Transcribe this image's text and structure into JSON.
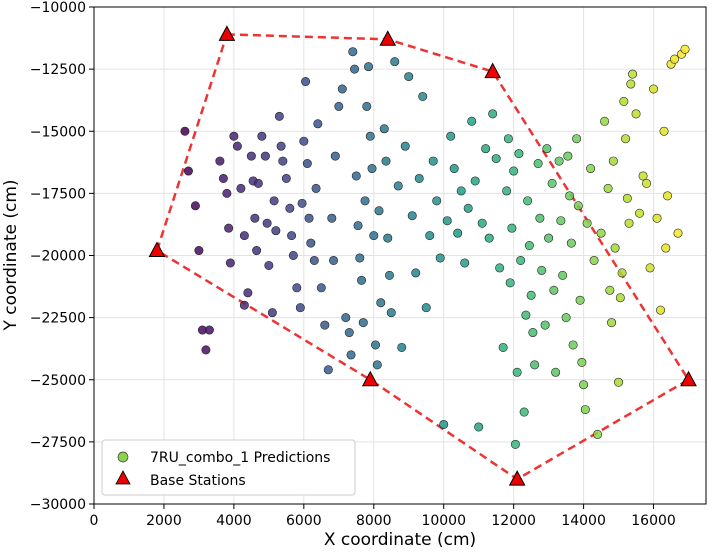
{
  "chart_data": {
    "type": "scatter",
    "title": "",
    "xlabel": "X coordinate (cm)",
    "ylabel": "Y coordinate (cm)",
    "xlim": [
      0,
      17500
    ],
    "ylim": [
      -30000,
      -10000
    ],
    "xticks": [
      0,
      2000,
      4000,
      6000,
      8000,
      10000,
      12000,
      14000,
      16000
    ],
    "xtick_labels": [
      "0",
      "2000",
      "4000",
      "6000",
      "8000",
      "10000",
      "12000",
      "14000",
      "16000"
    ],
    "yticks": [
      -30000,
      -27500,
      -25000,
      -22500,
      -20000,
      -17500,
      -15000,
      -12500,
      -10000
    ],
    "ytick_labels": [
      "−30000",
      "−27500",
      "−25000",
      "−22500",
      "−20000",
      "−17500",
      "−15000",
      "−12500",
      "−10000"
    ],
    "grid": true,
    "legend_position": "bottom-left",
    "colormap": "viridis",
    "color_by": "x",
    "series": [
      {
        "name": "7RU_combo_1 Predictions",
        "marker": "circle",
        "points": [
          [
            2600,
            -15000
          ],
          [
            2700,
            -16600
          ],
          [
            2900,
            -18000
          ],
          [
            3000,
            -19800
          ],
          [
            3100,
            -23000
          ],
          [
            3200,
            -23800
          ],
          [
            3300,
            -23000
          ],
          [
            3600,
            -16200
          ],
          [
            3700,
            -16900
          ],
          [
            3800,
            -17500
          ],
          [
            3850,
            -18900
          ],
          [
            3900,
            -20300
          ],
          [
            4000,
            -15200
          ],
          [
            4100,
            -15600
          ],
          [
            4200,
            -17300
          ],
          [
            4300,
            -19200
          ],
          [
            4300,
            -22000
          ],
          [
            4400,
            -21500
          ],
          [
            4500,
            -16000
          ],
          [
            4550,
            -17000
          ],
          [
            4600,
            -18500
          ],
          [
            4650,
            -19800
          ],
          [
            4700,
            -17100
          ],
          [
            4800,
            -15200
          ],
          [
            4900,
            -16000
          ],
          [
            4950,
            -18700
          ],
          [
            5000,
            -20400
          ],
          [
            5100,
            -22300
          ],
          [
            5150,
            -17800
          ],
          [
            5200,
            -19000
          ],
          [
            5300,
            -14400
          ],
          [
            5350,
            -15600
          ],
          [
            5400,
            -16200
          ],
          [
            5500,
            -16900
          ],
          [
            5600,
            -18100
          ],
          [
            5650,
            -19200
          ],
          [
            5700,
            -20000
          ],
          [
            5800,
            -21300
          ],
          [
            5900,
            -22100
          ],
          [
            5950,
            -17900
          ],
          [
            6000,
            -15400
          ],
          [
            6050,
            -13000
          ],
          [
            6100,
            -16300
          ],
          [
            6150,
            -18500
          ],
          [
            6200,
            -19500
          ],
          [
            6300,
            -20200
          ],
          [
            6350,
            -17300
          ],
          [
            6400,
            -14700
          ],
          [
            6500,
            -21300
          ],
          [
            6600,
            -22800
          ],
          [
            6700,
            -24600
          ],
          [
            6800,
            -18500
          ],
          [
            6850,
            -20200
          ],
          [
            6900,
            -16000
          ],
          [
            7000,
            -14000
          ],
          [
            7100,
            -13300
          ],
          [
            7200,
            -22500
          ],
          [
            7300,
            -23100
          ],
          [
            7350,
            -24000
          ],
          [
            7400,
            -11800
          ],
          [
            7450,
            -12500
          ],
          [
            7500,
            -16800
          ],
          [
            7550,
            -18800
          ],
          [
            7600,
            -20100
          ],
          [
            7650,
            -21000
          ],
          [
            7700,
            -22700
          ],
          [
            7750,
            -17800
          ],
          [
            7800,
            -14000
          ],
          [
            7850,
            -12400
          ],
          [
            7900,
            -15200
          ],
          [
            7950,
            -16500
          ],
          [
            8000,
            -19200
          ],
          [
            8050,
            -23600
          ],
          [
            8100,
            -24400
          ],
          [
            8150,
            -18200
          ],
          [
            8200,
            -21900
          ],
          [
            8300,
            -14900
          ],
          [
            8350,
            -16200
          ],
          [
            8400,
            -19300
          ],
          [
            8450,
            -20800
          ],
          [
            8500,
            -22300
          ],
          [
            8600,
            -12200
          ],
          [
            8700,
            -17200
          ],
          [
            8800,
            -23700
          ],
          [
            8900,
            -15600
          ],
          [
            9000,
            -12800
          ],
          [
            9100,
            -18400
          ],
          [
            9200,
            -20700
          ],
          [
            9300,
            -16900
          ],
          [
            9400,
            -13600
          ],
          [
            9500,
            -22100
          ],
          [
            9600,
            -19200
          ],
          [
            9700,
            -16200
          ],
          [
            9800,
            -17800
          ],
          [
            9900,
            -20100
          ],
          [
            10000,
            -26800
          ],
          [
            10100,
            -18600
          ],
          [
            10200,
            -15200
          ],
          [
            10300,
            -16500
          ],
          [
            10400,
            -19100
          ],
          [
            10500,
            -17400
          ],
          [
            10600,
            -20300
          ],
          [
            10700,
            -18100
          ],
          [
            10800,
            -14600
          ],
          [
            10900,
            -17000
          ],
          [
            11000,
            -26900
          ],
          [
            11100,
            -18700
          ],
          [
            11200,
            -15700
          ],
          [
            11300,
            -19300
          ],
          [
            11400,
            -14300
          ],
          [
            11500,
            -16100
          ],
          [
            11600,
            -20500
          ],
          [
            11700,
            -23700
          ],
          [
            11800,
            -17400
          ],
          [
            11850,
            -15300
          ],
          [
            11900,
            -21100
          ],
          [
            11950,
            -18900
          ],
          [
            12000,
            -16600
          ],
          [
            12050,
            -27600
          ],
          [
            12100,
            -24700
          ],
          [
            12150,
            -15900
          ],
          [
            12200,
            -20200
          ],
          [
            12300,
            -26300
          ],
          [
            12350,
            -22400
          ],
          [
            12400,
            -17800
          ],
          [
            12450,
            -19600
          ],
          [
            12500,
            -21600
          ],
          [
            12550,
            -23100
          ],
          [
            12600,
            -24400
          ],
          [
            12700,
            -16300
          ],
          [
            12750,
            -18500
          ],
          [
            12800,
            -20600
          ],
          [
            12900,
            -22800
          ],
          [
            12950,
            -15700
          ],
          [
            13000,
            -19300
          ],
          [
            13100,
            -17100
          ],
          [
            13150,
            -21400
          ],
          [
            13200,
            -24700
          ],
          [
            13300,
            -16200
          ],
          [
            13350,
            -18600
          ],
          [
            13400,
            -20800
          ],
          [
            13500,
            -22500
          ],
          [
            13550,
            -16000
          ],
          [
            13600,
            -17600
          ],
          [
            13650,
            -19500
          ],
          [
            13700,
            -23600
          ],
          [
            13800,
            -15300
          ],
          [
            13850,
            -18000
          ],
          [
            13900,
            -21800
          ],
          [
            13950,
            -24300
          ],
          [
            14000,
            -25200
          ],
          [
            14050,
            -26200
          ],
          [
            14100,
            -18700
          ],
          [
            14200,
            -16500
          ],
          [
            14300,
            -20200
          ],
          [
            14400,
            -27200
          ],
          [
            14500,
            -19100
          ],
          [
            14600,
            -14600
          ],
          [
            14700,
            -17300
          ],
          [
            14750,
            -21400
          ],
          [
            14800,
            -22700
          ],
          [
            14850,
            -16200
          ],
          [
            14900,
            -19700
          ],
          [
            15000,
            -25100
          ],
          [
            15050,
            -21700
          ],
          [
            15100,
            -20700
          ],
          [
            15150,
            -13800
          ],
          [
            15200,
            -15300
          ],
          [
            15250,
            -17700
          ],
          [
            15300,
            -18700
          ],
          [
            15350,
            -13100
          ],
          [
            15400,
            -12700
          ],
          [
            15500,
            -14300
          ],
          [
            15600,
            -18300
          ],
          [
            15700,
            -16800
          ],
          [
            15800,
            -17100
          ],
          [
            15900,
            -20500
          ],
          [
            16000,
            -13300
          ],
          [
            16100,
            -18500
          ],
          [
            16200,
            -22200
          ],
          [
            16300,
            -15000
          ],
          [
            16350,
            -19700
          ],
          [
            16400,
            -17600
          ],
          [
            16500,
            -12300
          ],
          [
            16600,
            -12100
          ],
          [
            16700,
            -19100
          ],
          [
            16800,
            -11900
          ],
          [
            16900,
            -11700
          ]
        ]
      },
      {
        "name": "Base Stations",
        "marker": "triangle",
        "color": "#ee0000",
        "points": [
          [
            3800,
            -11100
          ],
          [
            8400,
            -11300
          ],
          [
            11400,
            -12600
          ],
          [
            1800,
            -19800
          ],
          [
            7900,
            -25000
          ],
          [
            12100,
            -29000
          ],
          [
            17000,
            -25000
          ]
        ]
      }
    ],
    "boundary": {
      "style": "dashed",
      "color": "#ee3333",
      "vertices": [
        [
          3800,
          -11100
        ],
        [
          8400,
          -11300
        ],
        [
          11400,
          -12600
        ],
        [
          17000,
          -25000
        ],
        [
          12100,
          -29000
        ],
        [
          7900,
          -25000
        ],
        [
          1800,
          -19800
        ],
        [
          3800,
          -11100
        ]
      ]
    }
  }
}
